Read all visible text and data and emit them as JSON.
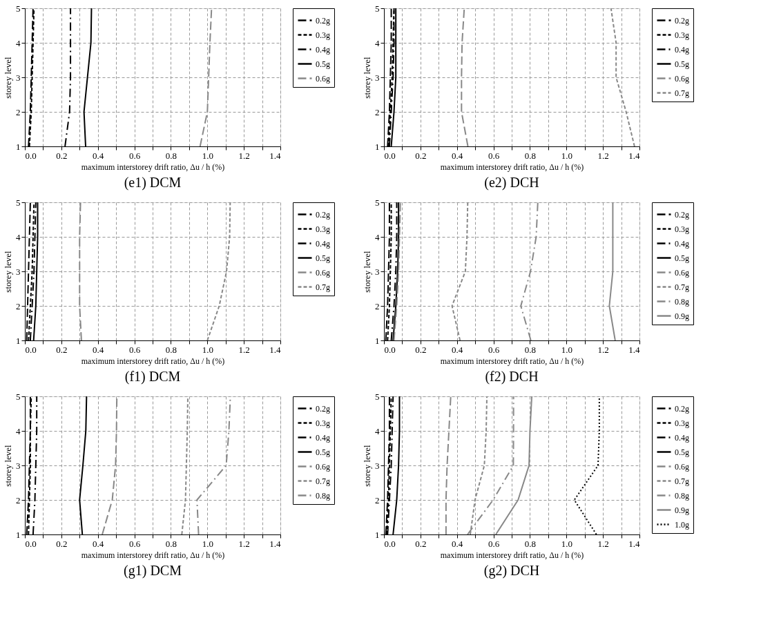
{
  "chart_data": [
    {
      "type": "line",
      "title": "(e1) DCM",
      "xlabel": "maximum interstorey drift ratio, Δu / h (%)",
      "ylabel": "storey level",
      "xlim": [
        0,
        1.4
      ],
      "ylim": [
        1,
        5
      ],
      "xticks": [
        {
          "value": 0,
          "label": "0.0"
        },
        {
          "value": 0.1,
          "label": null
        },
        {
          "value": 0.2,
          "label": "0.2"
        },
        {
          "value": 0.3,
          "label": null
        },
        {
          "value": 0.4,
          "label": "0.4"
        },
        {
          "value": 0.5,
          "label": null
        },
        {
          "value": 0.6,
          "label": "0.6"
        },
        {
          "value": 0.7,
          "label": null
        },
        {
          "value": 0.8,
          "label": "0.8"
        },
        {
          "value": 0.9,
          "label": null
        },
        {
          "value": 1,
          "label": "1.0"
        },
        {
          "value": 1.1,
          "label": null
        },
        {
          "value": 1.2,
          "label": "1.2"
        },
        {
          "value": 1.3,
          "label": null
        },
        {
          "value": 1.4,
          "label": "1.4"
        }
      ],
      "yticks": [
        1,
        2,
        3,
        4,
        5
      ],
      "grid": true,
      "legend": "right",
      "marker": "none",
      "series": [
        {
          "name": "0.2g",
          "color": "#000000",
          "line_style": "dashed",
          "x": [
            0.02,
            0.03,
            0.035,
            0.04,
            0.045
          ],
          "values": [
            1,
            2,
            3,
            4,
            5
          ]
        },
        {
          "name": "0.3g",
          "color": "#000000",
          "line_style": "shortdash",
          "x": [
            0.025,
            0.035,
            0.04,
            0.045,
            0.05
          ],
          "values": [
            1,
            2,
            3,
            4,
            5
          ]
        },
        {
          "name": "0.4g",
          "color": "#000000",
          "line_style": "dashdot",
          "x": [
            0.22,
            0.245,
            0.25,
            0.25,
            0.25
          ],
          "values": [
            1,
            2,
            3,
            4,
            5
          ]
        },
        {
          "name": "0.5g",
          "color": "#000000",
          "line_style": "solid",
          "x": [
            0.333,
            0.324,
            0.343,
            0.362,
            0.365
          ],
          "values": [
            1,
            2,
            3,
            4,
            5
          ]
        },
        {
          "name": "0.6g",
          "color": "#888888",
          "line_style": "dashed",
          "x": [
            0.96,
            1.0,
            1.007,
            1.014,
            1.023
          ],
          "values": [
            1,
            2,
            3,
            4,
            5
          ]
        }
      ]
    },
    {
      "type": "line",
      "title": "(e2) DCH",
      "xlabel": "maximum interstorey drift ratio, Δu / h (%)",
      "ylabel": "storey level",
      "xlim": [
        0,
        1.4
      ],
      "ylim": [
        1,
        5
      ],
      "xticks": [
        {
          "value": 0,
          "label": "0.0"
        },
        {
          "value": 0.1,
          "label": null
        },
        {
          "value": 0.2,
          "label": "0.2"
        },
        {
          "value": 0.3,
          "label": null
        },
        {
          "value": 0.4,
          "label": "0.4"
        },
        {
          "value": 0.5,
          "label": null
        },
        {
          "value": 0.6,
          "label": "0.6"
        },
        {
          "value": 0.7,
          "label": null
        },
        {
          "value": 0.8,
          "label": "0.8"
        },
        {
          "value": 0.9,
          "label": null
        },
        {
          "value": 1,
          "label": "1.0"
        },
        {
          "value": 1.1,
          "label": null
        },
        {
          "value": 1.2,
          "label": "1.2"
        },
        {
          "value": 1.3,
          "label": null
        },
        {
          "value": 1.4,
          "label": "1.4"
        }
      ],
      "yticks": [
        1,
        2,
        3,
        4,
        5
      ],
      "grid": true,
      "legend": "right",
      "marker": "none",
      "series": [
        {
          "name": "0.2g",
          "color": "#000000",
          "line_style": "dashed",
          "x": [
            0.02,
            0.03,
            0.035,
            0.04,
            0.04
          ],
          "values": [
            1,
            2,
            3,
            4,
            5
          ]
        },
        {
          "name": "0.3g",
          "color": "#000000",
          "line_style": "shortdash",
          "x": [
            0.025,
            0.035,
            0.045,
            0.05,
            0.055
          ],
          "values": [
            1,
            2,
            3,
            4,
            5
          ]
        },
        {
          "name": "0.4g",
          "color": "#000000",
          "line_style": "dashdot",
          "x": [
            0.03,
            0.04,
            0.05,
            0.055,
            0.055
          ],
          "values": [
            1,
            2,
            3,
            4,
            5
          ]
        },
        {
          "name": "0.5g",
          "color": "#000000",
          "line_style": "solid",
          "x": [
            0.04,
            0.055,
            0.065,
            0.065,
            0.065
          ],
          "values": [
            1,
            2,
            3,
            4,
            5
          ]
        },
        {
          "name": "0.6g",
          "color": "#888888",
          "line_style": "dashed",
          "x": [
            0.46,
            0.425,
            0.425,
            0.428,
            0.44
          ],
          "values": [
            1,
            2,
            3,
            4,
            5
          ]
        },
        {
          "name": "0.7g",
          "color": "#888888",
          "line_style": "shortdash",
          "x": [
            1.373,
            1.327,
            1.272,
            1.272,
            1.244
          ],
          "values": [
            1,
            2,
            3,
            4,
            5
          ]
        }
      ]
    },
    {
      "type": "line",
      "title": "(f1) DCM",
      "xlabel": "maximum interstorey drift ratio, Δu / h (%)",
      "ylabel": "storey level",
      "xlim": [
        0,
        1.4
      ],
      "ylim": [
        1,
        5
      ],
      "xticks": [
        {
          "value": 0,
          "label": "0.0"
        },
        {
          "value": 0.1,
          "label": null
        },
        {
          "value": 0.2,
          "label": "0.2"
        },
        {
          "value": 0.3,
          "label": null
        },
        {
          "value": 0.4,
          "label": "0.4"
        },
        {
          "value": 0.5,
          "label": null
        },
        {
          "value": 0.6,
          "label": "0.6"
        },
        {
          "value": 0.7,
          "label": null
        },
        {
          "value": 0.8,
          "label": "0.8"
        },
        {
          "value": 0.9,
          "label": null
        },
        {
          "value": 1,
          "label": "1.0"
        },
        {
          "value": 1.1,
          "label": null
        },
        {
          "value": 1.2,
          "label": "1.2"
        },
        {
          "value": 1.3,
          "label": null
        },
        {
          "value": 1.4,
          "label": "1.4"
        }
      ],
      "yticks": [
        1,
        2,
        3,
        4,
        5
      ],
      "grid": true,
      "legend": "right",
      "marker": "none",
      "series": [
        {
          "name": "0.2g",
          "color": "#000000",
          "line_style": "dashed",
          "x": [
            0.01,
            0.015,
            0.02,
            0.025,
            0.03
          ],
          "values": [
            1,
            2,
            3,
            4,
            5
          ]
        },
        {
          "name": "0.3g",
          "color": "#000000",
          "line_style": "shortdash",
          "x": [
            0.02,
            0.03,
            0.04,
            0.045,
            0.05
          ],
          "values": [
            1,
            2,
            3,
            4,
            5
          ]
        },
        {
          "name": "0.4g",
          "color": "#000000",
          "line_style": "dashdot",
          "x": [
            0.03,
            0.04,
            0.05,
            0.055,
            0.06
          ],
          "values": [
            1,
            2,
            3,
            4,
            5
          ]
        },
        {
          "name": "0.5g",
          "color": "#000000",
          "line_style": "solid",
          "x": [
            0.048,
            0.06,
            0.065,
            0.07,
            0.07
          ],
          "values": [
            1,
            2,
            3,
            4,
            5
          ]
        },
        {
          "name": "0.6g",
          "color": "#888888",
          "line_style": "dashed",
          "x": [
            0.31,
            0.3,
            0.3,
            0.3,
            0.305
          ],
          "values": [
            1,
            2,
            3,
            4,
            5
          ]
        },
        {
          "name": "0.7g",
          "color": "#888888",
          "line_style": "shortdash",
          "x": [
            1.0,
            1.065,
            1.105,
            1.122,
            1.125
          ],
          "values": [
            1,
            2,
            3,
            4,
            5
          ]
        }
      ]
    },
    {
      "type": "line",
      "title": "(f2) DCH",
      "xlabel": "maximum interstorey drift ratio, Δu / h (%)",
      "ylabel": "storey level",
      "xlim": [
        0,
        1.4
      ],
      "ylim": [
        1,
        5
      ],
      "xticks": [
        {
          "value": 0,
          "label": "0.0"
        },
        {
          "value": 0.1,
          "label": null
        },
        {
          "value": 0.2,
          "label": "0.2"
        },
        {
          "value": 0.3,
          "label": null
        },
        {
          "value": 0.4,
          "label": "0.4"
        },
        {
          "value": 0.5,
          "label": null
        },
        {
          "value": 0.6,
          "label": "0.6"
        },
        {
          "value": 0.7,
          "label": null
        },
        {
          "value": 0.8,
          "label": "0.8"
        },
        {
          "value": 0.9,
          "label": null
        },
        {
          "value": 1,
          "label": "1.0"
        },
        {
          "value": 1.1,
          "label": null
        },
        {
          "value": 1.2,
          "label": "1.2"
        },
        {
          "value": 1.3,
          "label": null
        },
        {
          "value": 1.4,
          "label": "1.4"
        }
      ],
      "yticks": [
        1,
        2,
        3,
        4,
        5
      ],
      "grid": true,
      "legend": "right",
      "marker": "none",
      "series": [
        {
          "name": "0.2g",
          "color": "#000000",
          "line_style": "dashed",
          "x": [
            0.01,
            0.02,
            0.025,
            0.03,
            0.03
          ],
          "values": [
            1,
            2,
            3,
            4,
            5
          ]
        },
        {
          "name": "0.3g",
          "color": "#000000",
          "line_style": "shortdash",
          "x": [
            0.02,
            0.03,
            0.035,
            0.04,
            0.04
          ],
          "values": [
            1,
            2,
            3,
            4,
            5
          ]
        },
        {
          "name": "0.4g",
          "color": "#000000",
          "line_style": "dashdot",
          "x": [
            0.04,
            0.055,
            0.065,
            0.07,
            0.07
          ],
          "values": [
            1,
            2,
            3,
            4,
            5
          ]
        },
        {
          "name": "0.5g",
          "color": "#000000",
          "line_style": "solid",
          "x": [
            0.05,
            0.065,
            0.075,
            0.08,
            0.08
          ],
          "values": [
            1,
            2,
            3,
            4,
            5
          ]
        },
        {
          "name": "0.6g",
          "color": "#888888",
          "line_style": "dashed",
          "x": [
            0.055,
            0.07,
            0.08,
            0.085,
            0.09
          ],
          "values": [
            1,
            2,
            3,
            4,
            5
          ]
        },
        {
          "name": "0.7g",
          "color": "#888888",
          "line_style": "shortdash",
          "x": [
            0.417,
            0.373,
            0.446,
            0.455,
            0.459
          ],
          "values": [
            1,
            2,
            3,
            4,
            5
          ]
        },
        {
          "name": "0.8g",
          "color": "#888888",
          "line_style": "dashdot",
          "x": [
            0.805,
            0.75,
            0.803,
            0.834,
            0.843
          ],
          "values": [
            1,
            2,
            3,
            4,
            5
          ]
        },
        {
          "name": "0.9g",
          "color": "#888888",
          "line_style": "solid",
          "x": [
            1.267,
            1.235,
            1.254,
            1.254,
            1.254
          ],
          "values": [
            1,
            2,
            3,
            4,
            5
          ]
        }
      ]
    },
    {
      "type": "line",
      "title": "(g1) DCM",
      "xlabel": "maximum interstorey drift ratio, Δu / h (%)",
      "ylabel": "storey level",
      "xlim": [
        0,
        1.4
      ],
      "ylim": [
        1,
        5
      ],
      "xticks": [
        {
          "value": 0,
          "label": "0.0"
        },
        {
          "value": 0.1,
          "label": null
        },
        {
          "value": 0.2,
          "label": "0.2"
        },
        {
          "value": 0.3,
          "label": null
        },
        {
          "value": 0.4,
          "label": "0.4"
        },
        {
          "value": 0.5,
          "label": null
        },
        {
          "value": 0.6,
          "label": "0.6"
        },
        {
          "value": 0.7,
          "label": null
        },
        {
          "value": 0.8,
          "label": "0.8"
        },
        {
          "value": 0.9,
          "label": null
        },
        {
          "value": 1,
          "label": "1.0"
        },
        {
          "value": 1.1,
          "label": null
        },
        {
          "value": 1.2,
          "label": "1.2"
        },
        {
          "value": 1.3,
          "label": null
        },
        {
          "value": 1.4,
          "label": "1.4"
        }
      ],
      "yticks": [
        1,
        2,
        3,
        4,
        5
      ],
      "grid": true,
      "legend": "right",
      "marker": "none",
      "series": [
        {
          "name": "0.2g",
          "color": "#000000",
          "line_style": "dashed",
          "x": [
            0.01,
            0.02,
            0.025,
            0.03,
            0.03
          ],
          "values": [
            1,
            2,
            3,
            4,
            5
          ]
        },
        {
          "name": "0.3g",
          "color": "#000000",
          "line_style": "shortdash",
          "x": [
            0.02,
            0.025,
            0.03,
            0.03,
            0.035
          ],
          "values": [
            1,
            2,
            3,
            4,
            5
          ]
        },
        {
          "name": "0.4g",
          "color": "#000000",
          "line_style": "dashdot",
          "x": [
            0.045,
            0.055,
            0.06,
            0.065,
            0.065
          ],
          "values": [
            1,
            2,
            3,
            4,
            5
          ]
        },
        {
          "name": "0.5g",
          "color": "#000000",
          "line_style": "solid",
          "x": [
            0.315,
            0.3,
            0.318,
            0.334,
            0.338
          ],
          "values": [
            1,
            2,
            3,
            4,
            5
          ]
        },
        {
          "name": "0.6g",
          "color": "#888888",
          "line_style": "dashed",
          "x": [
            0.424,
            0.479,
            0.497,
            0.502,
            0.504
          ],
          "values": [
            1,
            2,
            3,
            4,
            5
          ]
        },
        {
          "name": "0.7g",
          "color": "#888888",
          "line_style": "shortdash",
          "x": [
            0.86,
            0.88,
            0.885,
            0.89,
            0.893
          ],
          "values": [
            1,
            2,
            3,
            4,
            5
          ]
        },
        {
          "name": "0.8g",
          "color": "#888888",
          "line_style": "dashdot",
          "x": [
            0.952,
            0.943,
            1.103,
            1.118,
            1.126
          ],
          "values": [
            1,
            2,
            3,
            4,
            5
          ]
        }
      ]
    },
    {
      "type": "line",
      "title": "(g2) DCH",
      "xlabel": "maximum interstorey drift ratio, Δu / h (%)",
      "ylabel": "storey level",
      "xlim": [
        0,
        1.4
      ],
      "ylim": [
        1,
        5
      ],
      "xticks": [
        {
          "value": 0,
          "label": "0.0"
        },
        {
          "value": 0.1,
          "label": null
        },
        {
          "value": 0.2,
          "label": "0.2"
        },
        {
          "value": 0.3,
          "label": null
        },
        {
          "value": 0.4,
          "label": "0.4"
        },
        {
          "value": 0.5,
          "label": null
        },
        {
          "value": 0.6,
          "label": "0.6"
        },
        {
          "value": 0.7,
          "label": null
        },
        {
          "value": 0.8,
          "label": "0.8"
        },
        {
          "value": 0.9,
          "label": null
        },
        {
          "value": 1,
          "label": "1.0"
        },
        {
          "value": 1.1,
          "label": null
        },
        {
          "value": 1.2,
          "label": "1.2"
        },
        {
          "value": 1.3,
          "label": null
        },
        {
          "value": 1.4,
          "label": "1.4"
        }
      ],
      "yticks": [
        1,
        2,
        3,
        4,
        5
      ],
      "grid": true,
      "legend": "right",
      "marker": "none",
      "series": [
        {
          "name": "0.2g",
          "color": "#000000",
          "line_style": "dashed",
          "x": [
            0.01,
            0.02,
            0.025,
            0.03,
            0.03
          ],
          "values": [
            1,
            2,
            3,
            4,
            5
          ]
        },
        {
          "name": "0.3g",
          "color": "#000000",
          "line_style": "shortdash",
          "x": [
            0.015,
            0.025,
            0.03,
            0.035,
            0.04
          ],
          "values": [
            1,
            2,
            3,
            4,
            5
          ]
        },
        {
          "name": "0.4g",
          "color": "#000000",
          "line_style": "dashdot",
          "x": [
            0.02,
            0.03,
            0.04,
            0.045,
            0.05
          ],
          "values": [
            1,
            2,
            3,
            4,
            5
          ]
        },
        {
          "name": "0.5g",
          "color": "#000000",
          "line_style": "solid",
          "x": [
            0.05,
            0.07,
            0.08,
            0.085,
            0.085
          ],
          "values": [
            1,
            2,
            3,
            4,
            5
          ]
        },
        {
          "name": "0.6g",
          "color": "#888888",
          "line_style": "dashed",
          "x": [
            0.34,
            0.34,
            0.346,
            0.356,
            0.366
          ],
          "values": [
            1,
            2,
            3,
            4,
            5
          ]
        },
        {
          "name": "0.7g",
          "color": "#888888",
          "line_style": "shortdash",
          "x": [
            0.473,
            0.499,
            0.55,
            0.56,
            0.564
          ],
          "values": [
            1,
            2,
            3,
            4,
            5
          ]
        },
        {
          "name": "0.8g",
          "color": "#888888",
          "line_style": "dashdot",
          "x": [
            0.458,
            0.598,
            0.709,
            0.71,
            0.71
          ],
          "values": [
            1,
            2,
            3,
            4,
            5
          ]
        },
        {
          "name": "0.9g",
          "color": "#888888",
          "line_style": "solid",
          "x": [
            0.613,
            0.735,
            0.795,
            0.8,
            0.81
          ],
          "values": [
            1,
            2,
            3,
            4,
            5
          ]
        },
        {
          "name": "1.0g",
          "color": "#000000",
          "line_style": "dotted",
          "x": [
            1.164,
            1.043,
            1.173,
            1.18,
            1.18
          ],
          "values": [
            1,
            2,
            3,
            4,
            5
          ]
        }
      ]
    }
  ]
}
